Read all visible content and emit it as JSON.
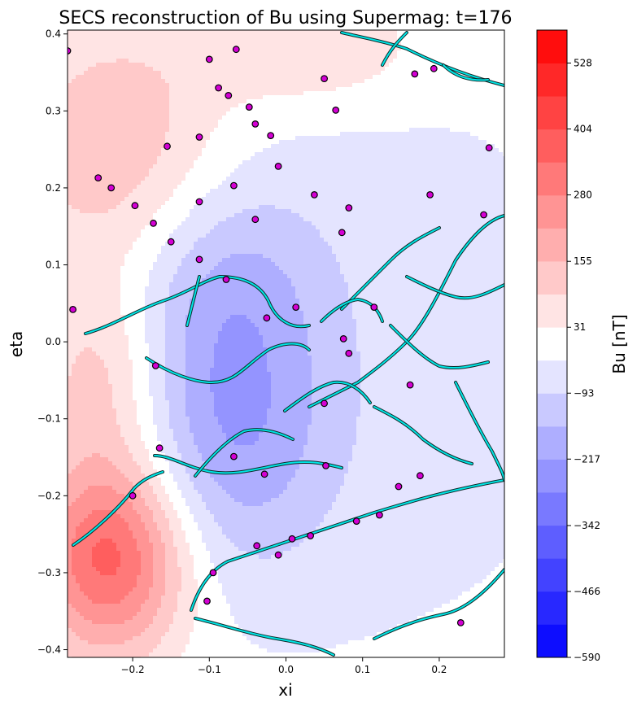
{
  "chart_data": {
    "type": "heatmap",
    "title": "SECS reconstruction of Bu using Supermag: t=176",
    "xlabel": "xi",
    "ylabel": "eta",
    "xlim": [
      -0.285,
      0.285
    ],
    "ylim": [
      -0.41,
      0.405
    ],
    "xticks": [
      -0.2,
      -0.1,
      0.0,
      0.1,
      0.2
    ],
    "xtick_labels": [
      "−0.2",
      "−0.1",
      "0.0",
      "0.1",
      "0.2"
    ],
    "yticks": [
      -0.4,
      -0.3,
      -0.2,
      -0.1,
      0.0,
      0.1,
      0.2,
      0.3,
      0.4
    ],
    "ytick_labels": [
      "−0.4",
      "−0.3",
      "−0.2",
      "−0.1",
      "0.0",
      "0.1",
      "0.2",
      "0.3",
      "0.4"
    ],
    "colorbar": {
      "label": "Bu [nT]",
      "min": -590,
      "max": 590,
      "levels": 19,
      "colormap": "bwr",
      "ticks": [
        -590,
        -466,
        -342,
        -217,
        -93,
        31,
        155,
        280,
        404,
        528
      ],
      "tick_labels": [
        "−590",
        "−466",
        "−342",
        "−217",
        "−93",
        "31",
        "155",
        "280",
        "404",
        "528"
      ]
    },
    "field_sources": [
      {
        "xi": -0.23,
        "eta": -0.28,
        "amp": 380,
        "sx": 0.07,
        "sy": 0.09
      },
      {
        "xi": -0.24,
        "eta": -0.05,
        "amp": 140,
        "sx": 0.06,
        "sy": 0.09
      },
      {
        "xi": -0.22,
        "eta": 0.25,
        "amp": 160,
        "sx": 0.1,
        "sy": 0.12
      },
      {
        "xi": 0.03,
        "eta": 0.38,
        "amp": 110,
        "sx": 0.1,
        "sy": 0.05
      },
      {
        "xi": -0.07,
        "eta": -0.12,
        "amp": -170,
        "sx": 0.09,
        "sy": 0.12
      },
      {
        "xi": -0.08,
        "eta": 0.08,
        "amp": -120,
        "sx": 0.09,
        "sy": 0.1
      },
      {
        "xi": 0.1,
        "eta": -0.02,
        "amp": -60,
        "sx": 0.25,
        "sy": 0.3
      }
    ],
    "stations": [
      [
        -0.285,
        0.378
      ],
      [
        -0.1,
        0.367
      ],
      [
        -0.065,
        0.38
      ],
      [
        -0.088,
        0.33
      ],
      [
        -0.075,
        0.32
      ],
      [
        -0.048,
        0.305
      ],
      [
        -0.04,
        0.283
      ],
      [
        -0.02,
        0.268
      ],
      [
        -0.01,
        0.228
      ],
      [
        0.05,
        0.342
      ],
      [
        0.065,
        0.301
      ],
      [
        0.168,
        0.348
      ],
      [
        0.193,
        0.355
      ],
      [
        0.265,
        0.252
      ],
      [
        -0.155,
        0.254
      ],
      [
        -0.113,
        0.266
      ],
      [
        -0.245,
        0.213
      ],
      [
        -0.228,
        0.2
      ],
      [
        -0.197,
        0.177
      ],
      [
        -0.113,
        0.182
      ],
      [
        -0.068,
        0.203
      ],
      [
        0.037,
        0.191
      ],
      [
        0.082,
        0.174
      ],
      [
        0.188,
        0.191
      ],
      [
        -0.173,
        0.154
      ],
      [
        -0.15,
        0.13
      ],
      [
        0.073,
        0.142
      ],
      [
        0.258,
        0.165
      ],
      [
        -0.113,
        0.107
      ],
      [
        -0.078,
        0.081
      ],
      [
        -0.04,
        0.159
      ],
      [
        -0.278,
        0.042
      ],
      [
        -0.025,
        0.031
      ],
      [
        0.013,
        0.045
      ],
      [
        0.115,
        0.045
      ],
      [
        0.075,
        0.004
      ],
      [
        0.082,
        -0.015
      ],
      [
        -0.17,
        -0.031
      ],
      [
        0.162,
        -0.056
      ],
      [
        0.05,
        -0.08
      ],
      [
        -0.165,
        -0.138
      ],
      [
        -0.068,
        -0.149
      ],
      [
        -0.028,
        -0.172
      ],
      [
        0.052,
        -0.161
      ],
      [
        0.175,
        -0.174
      ],
      [
        -0.2,
        -0.2
      ],
      [
        0.147,
        -0.188
      ],
      [
        0.122,
        -0.225
      ],
      [
        0.092,
        -0.233
      ],
      [
        -0.038,
        -0.265
      ],
      [
        0.008,
        -0.256
      ],
      [
        0.032,
        -0.252
      ],
      [
        -0.01,
        -0.277
      ],
      [
        -0.095,
        -0.3
      ],
      [
        -0.103,
        -0.337
      ],
      [
        0.228,
        -0.365
      ]
    ]
  }
}
